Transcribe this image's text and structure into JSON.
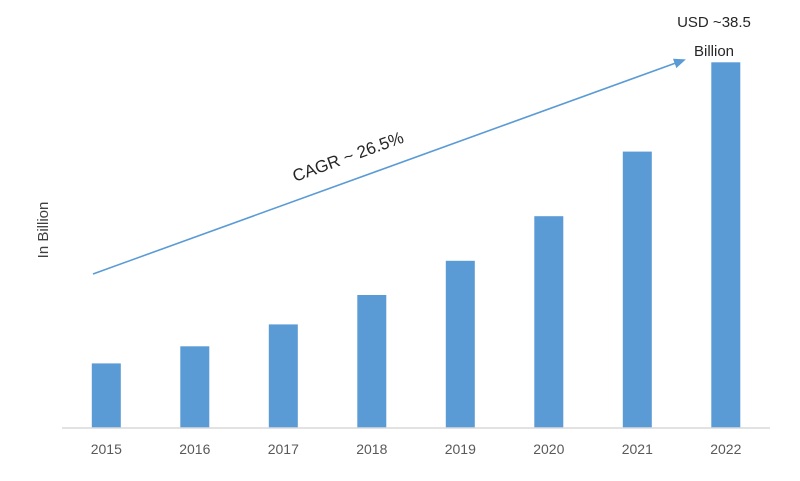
{
  "chart_data": {
    "type": "bar",
    "categories": [
      "2015",
      "2016",
      "2017",
      "2018",
      "2019",
      "2020",
      "2021",
      "2022"
    ],
    "values": [
      6.8,
      8.6,
      10.9,
      14.0,
      17.6,
      22.3,
      29.1,
      38.5
    ],
    "ylabel": "In Billion",
    "xlabel": "",
    "ylim": [
      0,
      40
    ],
    "grid": false,
    "legend": "none",
    "bar_color": "#5b9bd5",
    "annotations": {
      "cagr": "CAGR ~ 26.5%",
      "end_value_line1": "USD ~38.5",
      "end_value_line2": "Billion"
    },
    "trend_arrow_color": "#5b9bd5",
    "axis_color": "#d9d9d9"
  }
}
